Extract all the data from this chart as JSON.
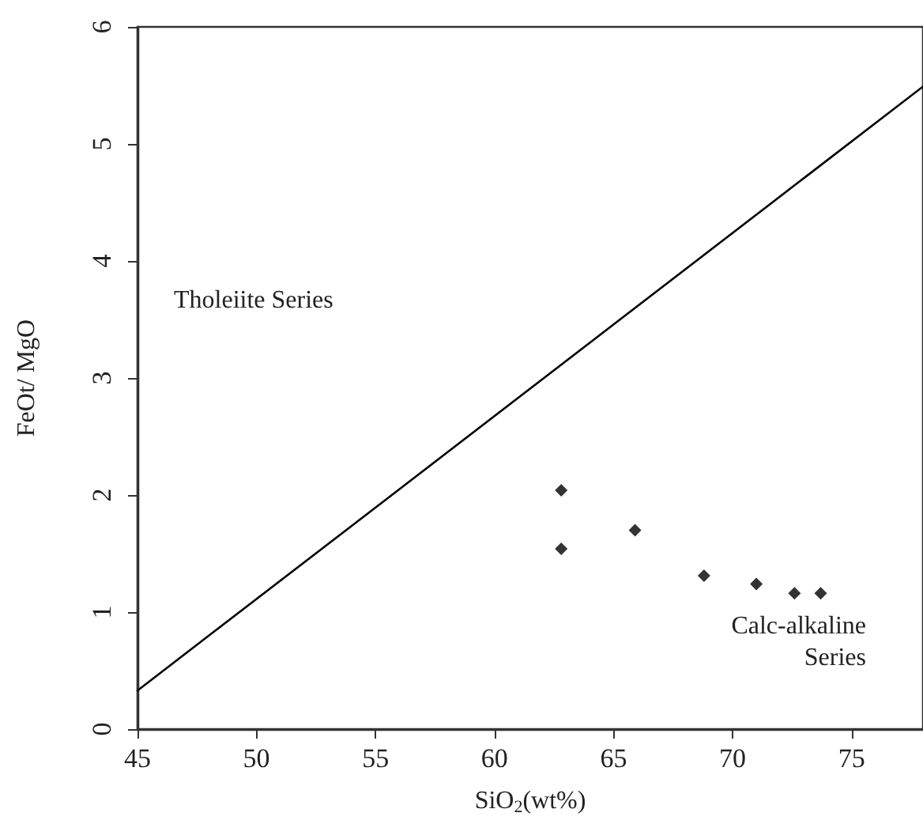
{
  "chart_data": {
    "type": "scatter",
    "xlabel": "SiO$_{2}$(wt%)",
    "ylabel": "FeOt/ MgO",
    "annotations": [
      "Tholeiite Series",
      "Calc-alkaline\nSeries"
    ],
    "xlim": [
      45,
      78
    ],
    "xticks": [
      45,
      50,
      55,
      60,
      65,
      70,
      75
    ],
    "ylim": [
      0,
      6
    ],
    "yticks": [
      0,
      1,
      2,
      3,
      4,
      5,
      6
    ],
    "grid": false,
    "series": [
      {
        "type": "line",
        "color": "#000000",
        "x": [
          45,
          78
        ],
        "values": [
          0.33,
          5.49
        ],
        "marker": "none",
        "line_style": "solid"
      },
      {
        "color": "#000000",
        "marker": "diamond",
        "x": [
          62.8,
          62.8,
          65.9,
          68.8,
          71.0,
          72.6,
          73.7
        ],
        "values": [
          2.04,
          1.54,
          1.7,
          1.31,
          1.24,
          1.16,
          1.16
        ]
      }
    ]
  }
}
